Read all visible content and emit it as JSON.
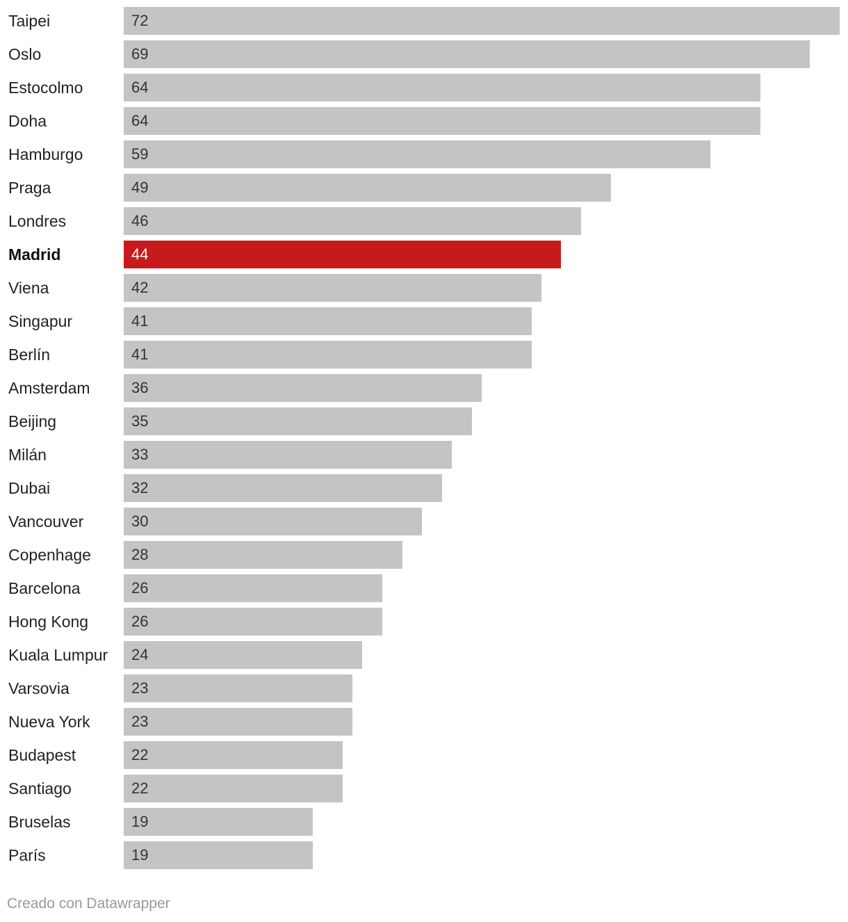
{
  "chart_data": {
    "type": "bar",
    "orientation": "horizontal",
    "categories": [
      "Taipei",
      "Oslo",
      "Estocolmo",
      "Doha",
      "Hamburgo",
      "Praga",
      "Londres",
      "Madrid",
      "Viena",
      "Singapur",
      "Berlín",
      "Amsterdam",
      "Beijing",
      "Milán",
      "Dubai",
      "Vancouver",
      "Copenhage",
      "Barcelona",
      "Hong Kong",
      "Kuala Lumpur",
      "Varsovia",
      "Nueva York",
      "Budapest",
      "Santiago",
      "Bruselas",
      "París"
    ],
    "values": [
      72,
      69,
      64,
      64,
      59,
      49,
      46,
      44,
      42,
      41,
      41,
      36,
      35,
      33,
      32,
      30,
      28,
      26,
      26,
      24,
      23,
      23,
      22,
      22,
      19,
      19
    ],
    "highlight": "Madrid",
    "xlim": [
      0,
      72
    ],
    "title": "",
    "xlabel": "",
    "ylabel": "",
    "colors": {
      "bar": "#c4c4c4",
      "highlight": "#c71b1b"
    }
  },
  "footer": {
    "credit": "Creado con Datawrapper"
  }
}
